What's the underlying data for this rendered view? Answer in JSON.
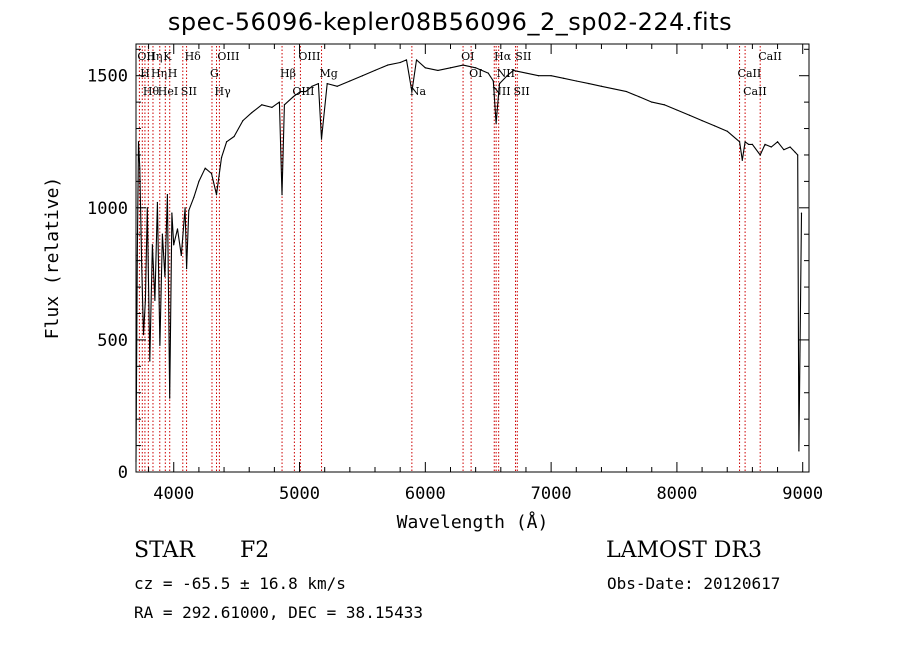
{
  "title": "spec-56096-kepler08B56096_2_sp02-224.fits",
  "footer": {
    "class_label": "STAR",
    "subclass": "F2",
    "cz": "cz = -65.5 ± 16.8 km/s",
    "radec": "RA = 292.61000, DEC =  38.15433",
    "survey": "LAMOST DR3",
    "obs_date": "Obs-Date: 20120617"
  },
  "chart_data": {
    "type": "line",
    "title": "spec-56096-kepler08B56096_2_sp02-224.fits",
    "xlabel": "Wavelength (Å)",
    "ylabel": "Flux (relative)",
    "xlim": [
      3700,
      9050
    ],
    "ylim": [
      0,
      1620
    ],
    "xticks": [
      4000,
      5000,
      6000,
      7000,
      8000,
      9000
    ],
    "yticks": [
      0,
      500,
      1000,
      1500
    ],
    "line_color": "#000000",
    "marker_color": "#cc0000",
    "series": [
      {
        "name": "flux",
        "x": [
          3700,
          3710,
          3720,
          3730,
          3745,
          3760,
          3775,
          3790,
          3810,
          3830,
          3850,
          3870,
          3890,
          3910,
          3930,
          3950,
          3968,
          3985,
          4000,
          4030,
          4060,
          4090,
          4102,
          4120,
          4160,
          4200,
          4250,
          4300,
          4340,
          4380,
          4420,
          4480,
          4550,
          4620,
          4700,
          4780,
          4840,
          4861,
          4880,
          4950,
          5007,
          5050,
          5100,
          5150,
          5175,
          5220,
          5300,
          5400,
          5500,
          5600,
          5700,
          5800,
          5850,
          5893,
          5930,
          6000,
          6100,
          6200,
          6300,
          6400,
          6500,
          6540,
          6563,
          6590,
          6650,
          6700,
          6800,
          6900,
          7000,
          7100,
          7200,
          7300,
          7400,
          7500,
          7600,
          7700,
          7800,
          7900,
          8000,
          8100,
          8200,
          8300,
          8400,
          8498,
          8520,
          8542,
          8570,
          8600,
          8662,
          8700,
          8750,
          8800,
          8850,
          8900,
          8940,
          8960,
          8970,
          8990
        ],
        "y": [
          40,
          820,
          1250,
          1150,
          780,
          520,
          650,
          1000,
          420,
          860,
          650,
          1020,
          480,
          900,
          740,
          1050,
          280,
          980,
          860,
          920,
          820,
          1000,
          770,
          990,
          1040,
          1100,
          1150,
          1130,
          1050,
          1190,
          1250,
          1270,
          1330,
          1360,
          1390,
          1380,
          1400,
          1050,
          1390,
          1420,
          1440,
          1440,
          1460,
          1470,
          1260,
          1470,
          1460,
          1480,
          1500,
          1520,
          1540,
          1550,
          1560,
          1440,
          1560,
          1530,
          1520,
          1530,
          1540,
          1530,
          1510,
          1480,
          1320,
          1470,
          1500,
          1520,
          1510,
          1500,
          1500,
          1490,
          1480,
          1470,
          1460,
          1450,
          1440,
          1420,
          1400,
          1390,
          1370,
          1350,
          1330,
          1310,
          1290,
          1250,
          1180,
          1250,
          1240,
          1240,
          1200,
          1240,
          1230,
          1250,
          1220,
          1230,
          1210,
          1200,
          80,
          980
        ]
      }
    ],
    "line_markers": [
      {
        "wave": 3727,
        "label": "OII"
      },
      {
        "wave": 3750,
        "label": "H"
      },
      {
        "wave": 3771,
        "label": "Hθ"
      },
      {
        "wave": 3798,
        "label": "Hη"
      },
      {
        "wave": 3835,
        "label": "Hη"
      },
      {
        "wave": 3889,
        "label": "HeI"
      },
      {
        "wave": 3933,
        "label": "K"
      },
      {
        "wave": 3968,
        "label": "H"
      },
      {
        "wave": 4072,
        "label": "SII"
      },
      {
        "wave": 4102,
        "label": "Hδ"
      },
      {
        "wave": 4304,
        "label": "G"
      },
      {
        "wave": 4340,
        "label": "Hγ"
      },
      {
        "wave": 4363,
        "label": "OIII"
      },
      {
        "wave": 4861,
        "label": "Hβ"
      },
      {
        "wave": 4959,
        "label": "OIII"
      },
      {
        "wave": 5007,
        "label": "OIII"
      },
      {
        "wave": 5175,
        "label": "Mg"
      },
      {
        "wave": 5893,
        "label": "Na"
      },
      {
        "wave": 6300,
        "label": "OI"
      },
      {
        "wave": 6364,
        "label": "OI"
      },
      {
        "wave": 6548,
        "label": "NII"
      },
      {
        "wave": 6563,
        "label": "Hα"
      },
      {
        "wave": 6583,
        "label": "NII"
      },
      {
        "wave": 6717,
        "label": "SII"
      },
      {
        "wave": 6731,
        "label": "SII"
      },
      {
        "wave": 8498,
        "label": "CaII"
      },
      {
        "wave": 8542,
        "label": "CaII"
      },
      {
        "wave": 8662,
        "label": "CaII"
      }
    ]
  }
}
